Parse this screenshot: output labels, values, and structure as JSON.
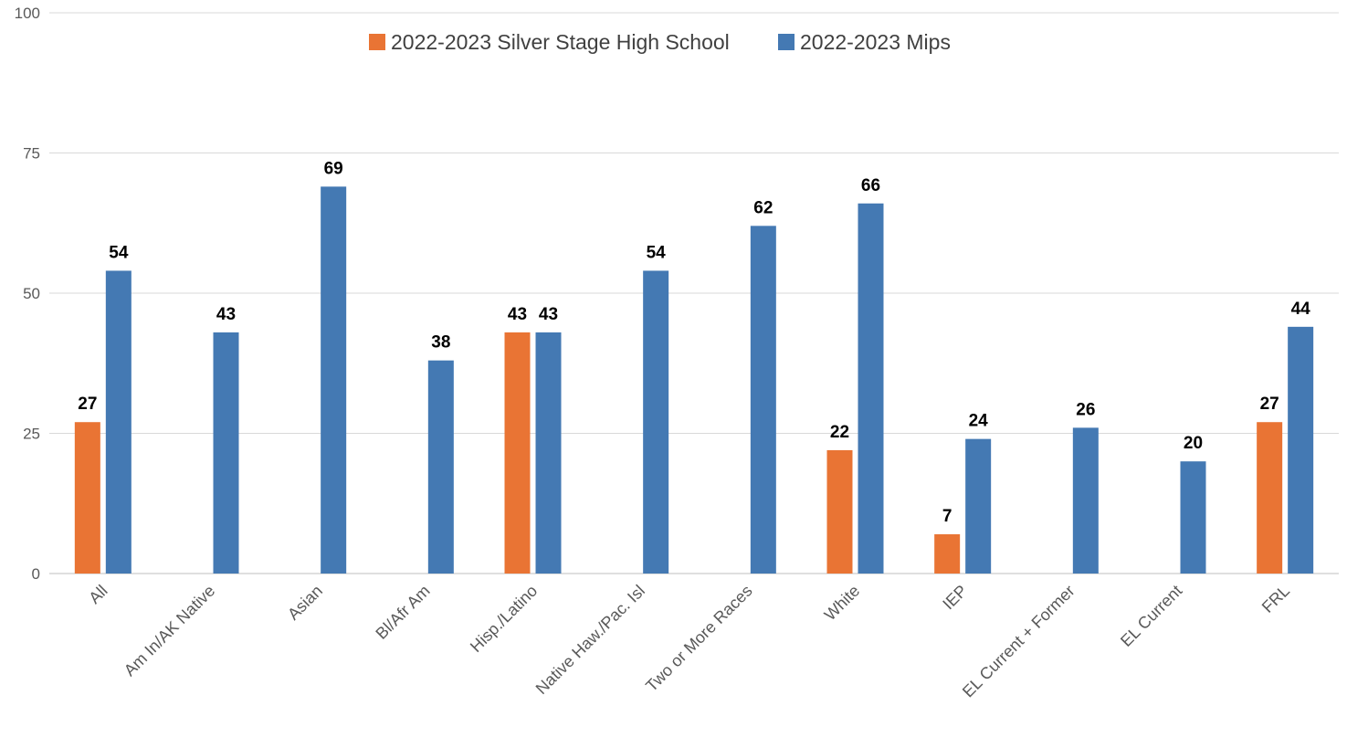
{
  "chart_data": {
    "type": "bar",
    "title": "",
    "xlabel": "",
    "ylabel": "",
    "ylim": [
      0,
      100
    ],
    "yticks": [
      0,
      25,
      50,
      75,
      100
    ],
    "grid": true,
    "legend_position": "top-center",
    "categories": [
      "All",
      "Am In/AK Native",
      "Asian",
      "Bl/Afr Am",
      "Hisp./Latino",
      "Native Haw./Pac. Isl",
      "Two or More Races",
      "White",
      "IEP",
      "EL Current + Former",
      "EL Current",
      "FRL"
    ],
    "series": [
      {
        "name": "2022-2023 Silver Stage High School",
        "color": "#E97434",
        "values": [
          27,
          null,
          null,
          null,
          43,
          null,
          null,
          22,
          7,
          null,
          null,
          27
        ]
      },
      {
        "name": "2022-2023 Mips",
        "color": "#4479B3",
        "values": [
          54,
          43,
          69,
          38,
          43,
          54,
          62,
          66,
          24,
          26,
          20,
          44
        ]
      }
    ]
  }
}
